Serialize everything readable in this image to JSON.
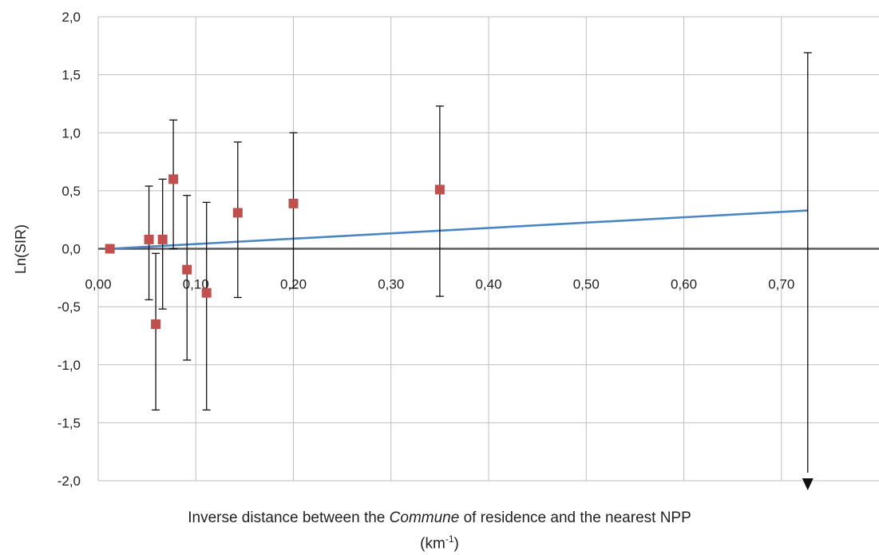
{
  "chart_data": {
    "type": "scatter",
    "ylabel": "Ln(SIR)",
    "xlabel": {
      "pre": "Inverse distance between the ",
      "italic": "Commune",
      "post": " of residence and the nearest NPP",
      "unit_open": "(km",
      "unit_sup": "-1",
      "unit_close": ")"
    },
    "xlim": [
      0,
      0.8
    ],
    "ylim": [
      -2,
      2
    ],
    "x_ticks": [
      {
        "value": 0.0,
        "label": "0,00"
      },
      {
        "value": 0.1,
        "label": "0,10"
      },
      {
        "value": 0.2,
        "label": "0,20"
      },
      {
        "value": 0.3,
        "label": "0,30"
      },
      {
        "value": 0.4,
        "label": "0,40"
      },
      {
        "value": 0.5,
        "label": "0,50"
      },
      {
        "value": 0.6,
        "label": "0,60"
      },
      {
        "value": 0.7,
        "label": "0,70"
      }
    ],
    "y_ticks": [
      {
        "value": 2.0,
        "label": "2,0"
      },
      {
        "value": 1.5,
        "label": "1,5"
      },
      {
        "value": 1.0,
        "label": "1,0"
      },
      {
        "value": 0.5,
        "label": "0,5"
      },
      {
        "value": 0.0,
        "label": "0,0"
      },
      {
        "value": -0.5,
        "label": "-0,5"
      },
      {
        "value": -1.0,
        "label": "-1,0"
      },
      {
        "value": -1.5,
        "label": "-1,5"
      },
      {
        "value": -2.0,
        "label": "-2,0"
      }
    ],
    "points": [
      {
        "x": 0.012,
        "y": 0.0,
        "lo": null,
        "hi": null
      },
      {
        "x": 0.052,
        "y": 0.08,
        "lo": -0.44,
        "hi": 0.54
      },
      {
        "x": 0.059,
        "y": -0.65,
        "lo": -1.39,
        "hi": -0.04
      },
      {
        "x": 0.066,
        "y": 0.08,
        "lo": -0.52,
        "hi": 0.6
      },
      {
        "x": 0.077,
        "y": 0.6,
        "lo": 0.0,
        "hi": 1.11
      },
      {
        "x": 0.091,
        "y": -0.18,
        "lo": -0.96,
        "hi": 0.46
      },
      {
        "x": 0.111,
        "y": -0.38,
        "lo": -1.39,
        "hi": 0.4
      },
      {
        "x": 0.143,
        "y": 0.31,
        "lo": -0.42,
        "hi": 0.92
      },
      {
        "x": 0.2,
        "y": 0.39,
        "lo": -0.34,
        "hi": 1.0
      },
      {
        "x": 0.35,
        "y": 0.51,
        "lo": -0.41,
        "hi": 1.23
      },
      {
        "x": 0.727,
        "y": null,
        "lo": -2.0,
        "hi": 1.69,
        "lo_arrow": true
      }
    ],
    "trend_line": {
      "x": [
        0.012,
        0.727
      ],
      "y": [
        0.0,
        0.33
      ]
    },
    "grid": true,
    "colors": {
      "points": "#c0504d",
      "trend": "#4a86c5",
      "error_bars": "#111111",
      "grid": "#bfbfbf",
      "zero_line": "#595959"
    }
  }
}
